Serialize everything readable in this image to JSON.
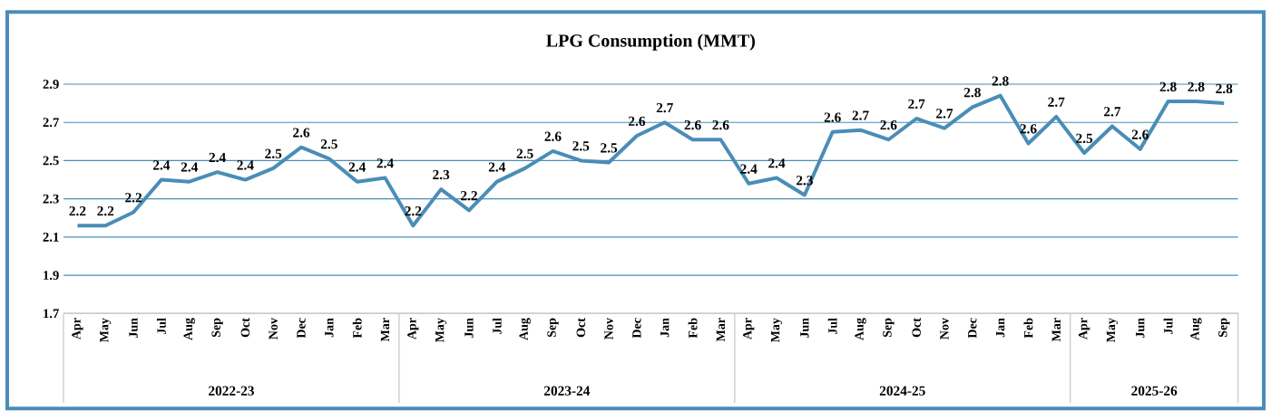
{
  "chart_data": {
    "type": "line",
    "title": "LPG Consumption (MMT)",
    "categories": [
      "Apr",
      "May",
      "Jun",
      "Jul",
      "Aug",
      "Sep",
      "Oct",
      "Nov",
      "Dec",
      "Jan",
      "Feb",
      "Mar",
      "Apr",
      "May",
      "Jun",
      "Jul",
      "Aug",
      "Sep",
      "Oct",
      "Nov",
      "Dec",
      "Jan",
      "Feb",
      "Mar",
      "Apr",
      "May",
      "Jun",
      "Jul",
      "Aug",
      "Sep",
      "Oct",
      "Nov",
      "Dec",
      "Jan",
      "Feb",
      "Mar",
      "Apr",
      "May",
      "Jun",
      "Jul",
      "Aug",
      "Sep"
    ],
    "series": [
      {
        "color": "#4a8db7",
        "values": [
          2.16,
          2.16,
          2.23,
          2.4,
          2.39,
          2.44,
          2.4,
          2.46,
          2.57,
          2.51,
          2.39,
          2.41,
          2.16,
          2.35,
          2.24,
          2.39,
          2.46,
          2.55,
          2.5,
          2.49,
          2.63,
          2.7,
          2.61,
          2.61,
          2.38,
          2.41,
          2.32,
          2.65,
          2.66,
          2.61,
          2.72,
          2.67,
          2.78,
          2.84,
          2.59,
          2.73,
          2.54,
          2.68,
          2.56,
          2.81,
          2.81,
          2.8
        ],
        "value_labels": [
          "2.2",
          "2.2",
          "2.2",
          "2.4",
          "2.4",
          "2.4",
          "2.4",
          "2.5",
          "2.6",
          "2.5",
          "2.4",
          "2.4",
          "2.2",
          "2.3",
          "2.2",
          "2.4",
          "2.5",
          "2.6",
          "2.5",
          "2.5",
          "2.6",
          "2.7",
          "2.6",
          "2.6",
          "2.4",
          "2.4",
          "2.3",
          "2.6",
          "2.7",
          "2.6",
          "2.7",
          "2.7",
          "2.8",
          "2.8",
          "2.6",
          "2.7",
          "2.5",
          "2.7",
          "2.6",
          "2.8",
          "2.8",
          "2.8"
        ]
      }
    ],
    "ylim": [
      1.7,
      2.9
    ],
    "yticks": [
      1.7,
      1.9,
      2.1,
      2.3,
      2.5,
      2.7,
      2.9
    ],
    "annotations": [
      "2022-23",
      "2023-24",
      "2024-25",
      "2025-26"
    ],
    "grid": "y",
    "marker": "none",
    "line_style": "solid"
  }
}
